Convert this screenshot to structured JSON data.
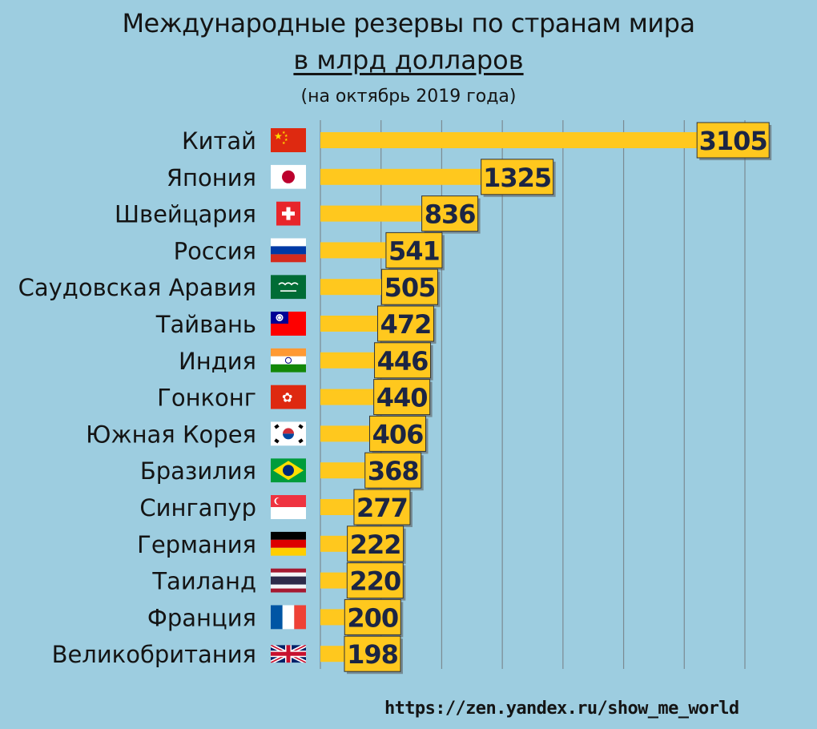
{
  "chart_data": {
    "type": "bar",
    "orientation": "horizontal",
    "title": "Международные резервы по странам мира",
    "title_line2": "в млрд долларов",
    "subtitle": "(на октябрь 2019 года)",
    "categories": [
      "Китай",
      "Япония",
      "Швейцария",
      "Россия",
      "Саудовская Аравия",
      "Тайвань",
      "Индия",
      "Гонконг",
      "Южная Корея",
      "Бразилия",
      "Сингапур",
      "Германия",
      "Таиланд",
      "Франция",
      "Великобритания"
    ],
    "values": [
      3105,
      1325,
      836,
      541,
      505,
      472,
      446,
      440,
      406,
      368,
      277,
      222,
      220,
      200,
      198
    ],
    "flags": [
      "china-flag-icon",
      "japan-flag-icon",
      "switzerland-flag-icon",
      "russia-flag-icon",
      "saudi-arabia-flag-icon",
      "taiwan-flag-icon",
      "india-flag-icon",
      "hong-kong-flag-icon",
      "south-korea-flag-icon",
      "brazil-flag-icon",
      "singapore-flag-icon",
      "germany-flag-icon",
      "thailand-flag-icon",
      "france-flag-icon",
      "united-kingdom-flag-icon"
    ],
    "xlim": [
      0,
      3500
    ],
    "grid": true,
    "bar_color": "#ffc81e",
    "label_box_color": "#ffc81e",
    "background_color": "#9dcde0"
  },
  "source": "https://zen.yandex.ru/show_me_world"
}
